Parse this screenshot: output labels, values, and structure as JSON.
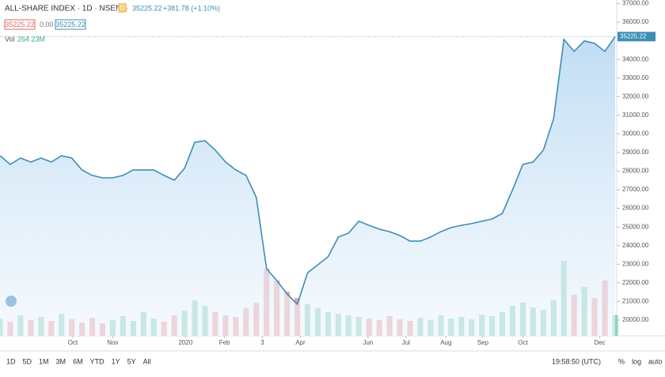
{
  "chart_data": {
    "type": "area",
    "title": "ALL-SHARE INDEX · 1D · NSENG",
    "badge": "D",
    "last": "35225.22",
    "change": "+381.78 (+1.10%)",
    "bid": "35225.22",
    "spread": "0.00",
    "ask": "35225.22",
    "volume_label": "Vol",
    "volume_value": "264.23M",
    "xlim": [
      0,
      60
    ],
    "xticks": [
      {
        "value": 7.1,
        "label": "Oct"
      },
      {
        "value": 11.0,
        "label": "Nov"
      },
      {
        "value": 18.1,
        "label": "2020"
      },
      {
        "value": 21.9,
        "label": "Feb"
      },
      {
        "value": 25.6,
        "label": "3"
      },
      {
        "value": 29.3,
        "label": "Apr"
      },
      {
        "value": 35.9,
        "label": "Jun"
      },
      {
        "value": 39.6,
        "label": "Jul"
      },
      {
        "value": 43.5,
        "label": "Aug"
      },
      {
        "value": 47.1,
        "label": "Sep"
      },
      {
        "value": 51.0,
        "label": "Oct"
      },
      {
        "value": 58.5,
        "label": "Dec"
      }
    ],
    "ylim": [
      19150,
      37190
    ],
    "yticks": [
      {
        "value": 20000,
        "label": "20000.00"
      },
      {
        "value": 21000,
        "label": "21000.00"
      },
      {
        "value": 22000,
        "label": "22000.00"
      },
      {
        "value": 23000,
        "label": "23000.00"
      },
      {
        "value": 24000,
        "label": "24000.00"
      },
      {
        "value": 25000,
        "label": "25000.00"
      },
      {
        "value": 26000,
        "label": "26000.00"
      },
      {
        "value": 27000,
        "label": "27000.00"
      },
      {
        "value": 28000,
        "label": "28000.00"
      },
      {
        "value": 29000,
        "label": "29000.00"
      },
      {
        "value": 30000,
        "label": "30000.00"
      },
      {
        "value": 31000,
        "label": "31000.00"
      },
      {
        "value": 32000,
        "label": "32000.00"
      },
      {
        "value": 33000,
        "label": "33000.00"
      },
      {
        "value": 34000,
        "label": "34000.00"
      },
      {
        "value": 36000,
        "label": "36000.00"
      },
      {
        "value": 37000,
        "label": "37000.00"
      }
    ],
    "y2lim": [
      0,
      1000
    ],
    "series": [
      {
        "name": "Price",
        "color": "#3d8db5",
        "values": [
          28830,
          28360,
          28700,
          28490,
          28700,
          28490,
          28830,
          28700,
          28060,
          27770,
          27640,
          27640,
          27770,
          28060,
          28060,
          28060,
          27770,
          27510,
          28150,
          29550,
          29630,
          29130,
          28490,
          28060,
          27770,
          26580,
          22760,
          22120,
          21400,
          20850,
          22540,
          22970,
          23400,
          24460,
          24670,
          25310,
          25090,
          24880,
          24750,
          24540,
          24240,
          24240,
          24460,
          24750,
          24970,
          25090,
          25180,
          25310,
          25430,
          25730,
          27000,
          28360,
          28490,
          29130,
          30820,
          35070,
          34430,
          34990,
          34860,
          34430,
          35225.22
        ]
      },
      {
        "name": "Volume",
        "axis": "y2",
        "up_color": "#8fd3bd",
        "down_color": "#eda3a3",
        "values": [
          220,
          180,
          260,
          200,
          240,
          190,
          280,
          210,
          170,
          230,
          160,
          200,
          250,
          190,
          300,
          220,
          180,
          260,
          320,
          450,
          380,
          300,
          260,
          240,
          350,
          420,
          850,
          700,
          560,
          480,
          400,
          350,
          300,
          280,
          260,
          240,
          220,
          200,
          250,
          210,
          190,
          230,
          200,
          260,
          220,
          240,
          210,
          270,
          250,
          300,
          380,
          420,
          360,
          330,
          450,
          950,
          520,
          620,
          480,
          700,
          264.23
        ]
      }
    ],
    "time": "19:58:50 (UTC)",
    "ranges": [
      "1D",
      "5D",
      "1M",
      "3M",
      "6M",
      "YTD",
      "1Y",
      "5Y",
      "All"
    ],
    "options": [
      "%",
      "log",
      "auto"
    ]
  }
}
